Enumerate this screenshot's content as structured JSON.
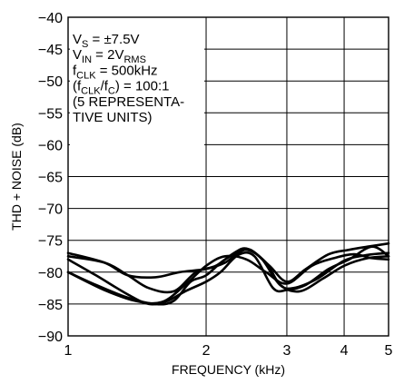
{
  "chart_data": {
    "type": "line",
    "xlabel": "FREQUENCY (kHz)",
    "ylabel": "THD + NOISE (dB)",
    "x_scale": "log",
    "xlim": [
      1,
      5
    ],
    "ylim": [
      -90,
      -40
    ],
    "x_ticks": [
      "1",
      "2",
      "3",
      "4",
      "5"
    ],
    "y_ticks": [
      "−40",
      "−45",
      "−50",
      "−55",
      "−60",
      "−65",
      "−70",
      "−75",
      "−80",
      "−85",
      "−90"
    ],
    "grid": true,
    "annotation": [
      {
        "main": "V",
        "sub": "S",
        "tail": " = ±7.5V"
      },
      {
        "main": "V",
        "sub": "IN",
        "tail": " = 2V",
        "sub2": "RMS"
      },
      {
        "main": "f",
        "sub": "CLK",
        "tail": " = 500kHz"
      },
      {
        "main": "(f",
        "sub": "CLK",
        "tail": "/f",
        "sub2": "C",
        "tail2": ") = 100:1"
      },
      {
        "main": "(5 REPRESENTA-"
      },
      {
        "main": "TIVE UNITS)"
      }
    ],
    "series": [
      {
        "x": [
          1,
          1.2,
          1.35,
          1.55,
          1.75,
          2,
          2.2,
          2.35,
          2.5,
          2.75,
          3,
          3.3,
          3.7,
          4.1,
          4.5,
          5
        ],
        "y": [
          -77,
          -78.5,
          -80.5,
          -80.8,
          -80,
          -79.5,
          -78.5,
          -77,
          -76.5,
          -79,
          -81.5,
          -79.5,
          -77.2,
          -76.5,
          -76,
          -75.5
        ]
      },
      {
        "x": [
          1,
          1.2,
          1.35,
          1.5,
          1.7,
          1.9,
          2.1,
          2.3,
          2.45,
          2.65,
          2.9,
          3.2,
          3.6,
          4,
          4.5,
          5
        ],
        "y": [
          -77.5,
          -78.5,
          -80.5,
          -82.5,
          -83,
          -80,
          -79,
          -77,
          -76.3,
          -78,
          -82,
          -83,
          -81,
          -79,
          -77.8,
          -77.5
        ]
      },
      {
        "x": [
          1,
          1.15,
          1.35,
          1.55,
          1.7,
          1.85,
          2,
          2.2,
          2.45,
          2.7,
          2.9,
          3.1,
          3.5,
          4,
          4.5,
          5
        ],
        "y": [
          -80,
          -82,
          -84,
          -85,
          -84.5,
          -81.5,
          -80.5,
          -78,
          -76.5,
          -78.5,
          -82,
          -82.5,
          -81,
          -78.2,
          -77.3,
          -77
        ]
      },
      {
        "x": [
          1,
          1.15,
          1.35,
          1.5,
          1.65,
          1.8,
          2,
          2.15,
          2.35,
          2.55,
          2.8,
          3,
          3.3,
          3.7,
          4.1,
          4.6,
          5
        ],
        "y": [
          -78,
          -80.5,
          -83.5,
          -85,
          -84.5,
          -83,
          -81.5,
          -80,
          -77.3,
          -77.5,
          -82.5,
          -82.8,
          -82,
          -79.5,
          -78,
          -76,
          -77.5
        ]
      },
      {
        "x": [
          1,
          1.2,
          1.4,
          1.6,
          1.8,
          2,
          2.2,
          2.45,
          2.7,
          3,
          3.4,
          3.8,
          4.2,
          4.6,
          5
        ],
        "y": [
          -80,
          -82.8,
          -84.5,
          -84.7,
          -82,
          -79,
          -77.5,
          -78,
          -80,
          -81.8,
          -79,
          -77.8,
          -77.2,
          -77.8,
          -78
        ]
      }
    ]
  }
}
